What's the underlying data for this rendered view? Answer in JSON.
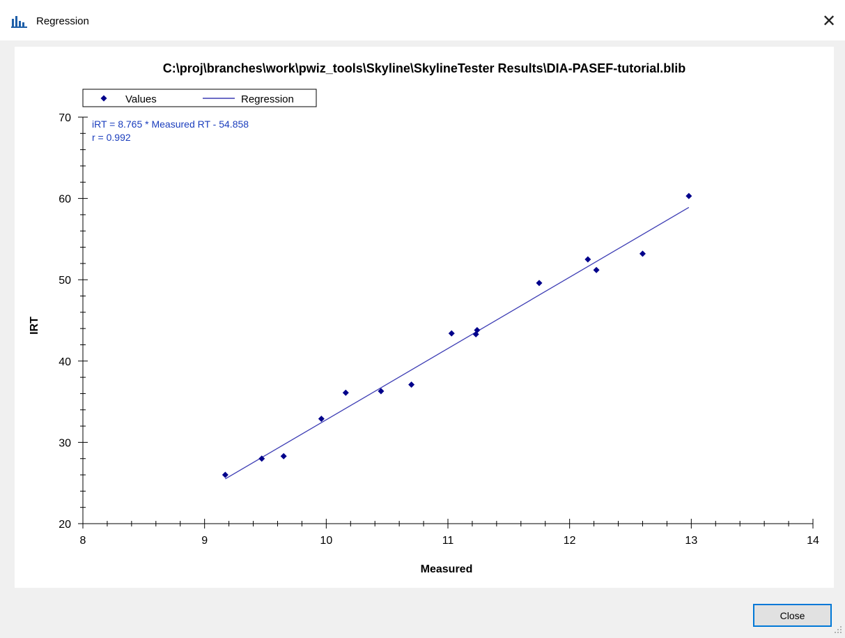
{
  "window": {
    "title": "Regression",
    "close_glyph": "✕",
    "icon": "chart-icon"
  },
  "dialog": {
    "close_button_label": "Close"
  },
  "chart_data": {
    "type": "scatter",
    "title": "C:\\proj\\branches\\work\\pwiz_tools\\Skyline\\SkylineTester  Results\\DIA-PASEF-tutorial.blib",
    "xlabel": "Measured",
    "ylabel": "IRT",
    "xlim": [
      8,
      14
    ],
    "ylim": [
      20,
      70
    ],
    "x_ticks": [
      8,
      9,
      10,
      11,
      12,
      13,
      14
    ],
    "y_ticks": [
      20,
      30,
      40,
      50,
      60,
      70
    ],
    "legend": {
      "placement": "top-left",
      "entries": [
        "Values",
        "Regression"
      ]
    },
    "annotations": [
      "iRT = 8.765 * Measured RT - 54.858",
      "r = 0.992"
    ],
    "series": [
      {
        "name": "Values",
        "kind": "points",
        "color": "#00008b",
        "x": [
          9.17,
          9.47,
          9.65,
          9.96,
          10.16,
          10.45,
          10.7,
          11.03,
          11.23,
          11.24,
          11.75,
          12.15,
          12.22,
          12.6,
          12.98
        ],
        "y": [
          26.0,
          28.0,
          28.3,
          32.9,
          36.1,
          36.3,
          37.1,
          43.4,
          43.3,
          43.8,
          49.6,
          52.5,
          51.2,
          53.2,
          60.3
        ]
      },
      {
        "name": "Regression",
        "kind": "line",
        "color": "#3c3cb4",
        "x": [
          9.17,
          12.98
        ],
        "y": [
          25.5,
          58.9
        ]
      }
    ]
  }
}
